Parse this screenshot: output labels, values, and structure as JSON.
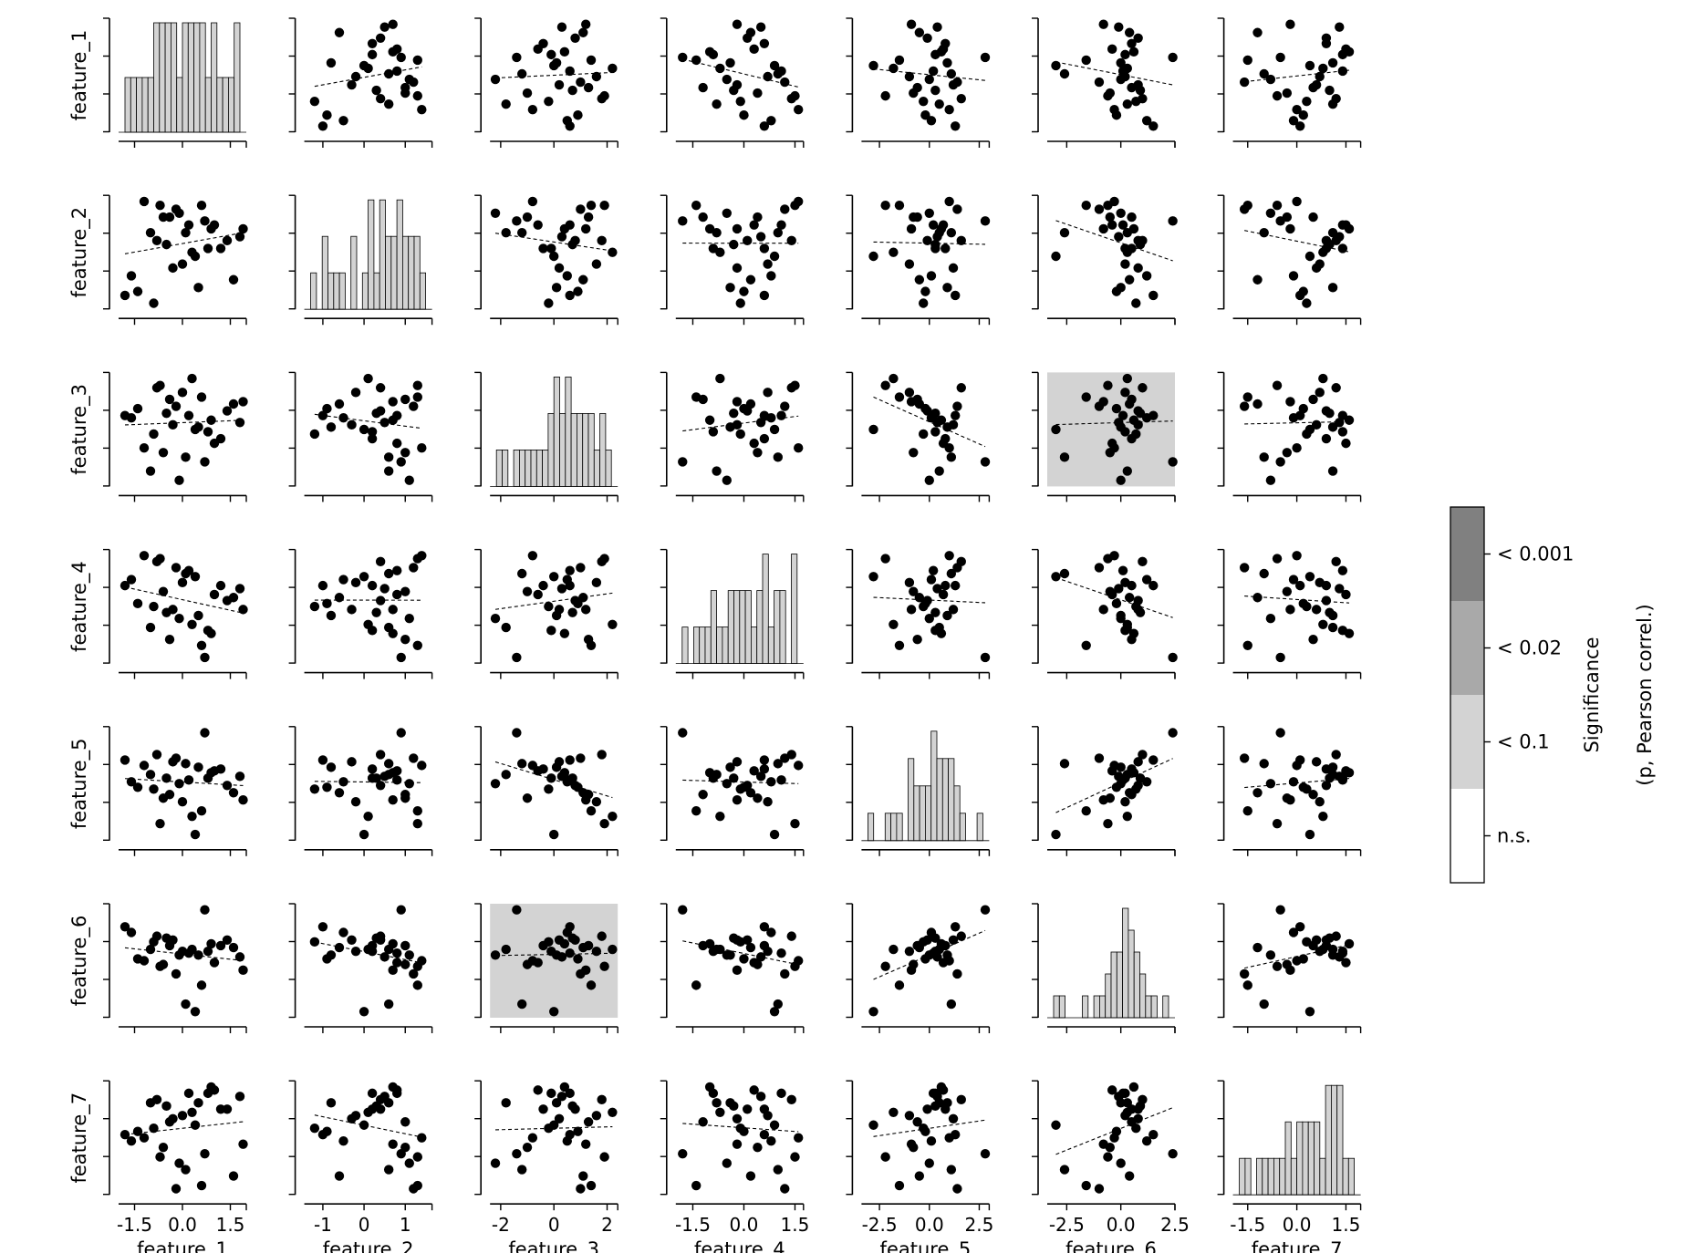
{
  "chart_data": {
    "type": "pairplot",
    "features": [
      "feature_1",
      "feature_2",
      "feature_3",
      "feature_4",
      "feature_5",
      "feature_6",
      "feature_7"
    ],
    "x_ticks": [
      [
        "-1.5",
        "0.0",
        "1.5"
      ],
      [
        "-1",
        "0",
        "1"
      ],
      [
        "-2",
        "0",
        "2"
      ],
      [
        "-1.5",
        "0.0",
        "1.5"
      ],
      [
        "-2.5",
        "0.0",
        "2.5"
      ],
      [
        "-2.5",
        "0.0",
        "2.5"
      ],
      [
        "-1.5",
        "0.0",
        "1.5"
      ]
    ],
    "x_tick_values": [
      [
        -1.5,
        0,
        1.5
      ],
      [
        -1,
        0,
        1
      ],
      [
        -2,
        0,
        2
      ],
      [
        -1.5,
        0,
        1.5
      ],
      [
        -2.5,
        0,
        2.5
      ],
      [
        -2.5,
        0,
        2.5
      ],
      [
        -1.5,
        0,
        1.5
      ]
    ],
    "x_ranges": [
      [
        -2.0,
        2.0
      ],
      [
        -1.45,
        1.65
      ],
      [
        -2.4,
        2.4
      ],
      [
        -2.0,
        1.75
      ],
      [
        -3.4,
        3.0
      ],
      [
        -3.4,
        2.5
      ],
      [
        -1.95,
        1.95
      ]
    ],
    "values": {
      "feature_1": [
        -1.0,
        -0.6,
        -0.3,
        0.2,
        0.6,
        1.2,
        -1.4,
        -0.8,
        -0.1,
        0.4,
        0.9,
        1.6,
        -1.2,
        -0.5,
        0.0,
        0.7,
        1.8,
        -0.9,
        -0.2,
        0.3,
        1.0,
        -1.6,
        -0.4,
        0.1,
        0.5,
        1.4,
        -0.7,
        0.8,
        -1.8,
        1.9
      ],
      "feature_2": [
        0.6,
        1.0,
        -0.3,
        0.8,
        1.3,
        0.2,
        -0.9,
        0.4,
        1.1,
        0.0,
        0.7,
        -0.6,
        1.4,
        0.3,
        -0.2,
        0.9,
        0.5,
        -1.2,
        1.2,
        0.1,
        0.8,
        -0.5,
        1.0,
        0.6,
        -0.8,
        0.4,
        1.3,
        0.2,
        -1.0,
        0.7
      ],
      "feature_3": [
        -1.8,
        -1.0,
        0.2,
        0.6,
        1.4,
        -0.4,
        0.9,
        1.8,
        -2.2,
        0.0,
        0.4,
        1.1,
        -0.8,
        0.7,
        1.6,
        -1.4,
        0.3,
        -0.2,
        1.0,
        2.2,
        -0.6,
        0.5,
        1.3,
        -1.2,
        0.1,
        0.8,
        1.9,
        -0.1,
        0.6,
        1.2
      ],
      "feature_4": [
        -0.8,
        0.4,
        -0.2,
        1.1,
        -1.4,
        0.6,
        0.0,
        1.4,
        -0.5,
        0.9,
        -1.0,
        0.2,
        1.6,
        -0.3,
        0.7,
        -1.8,
        0.5,
        -0.1,
        1.2,
        -0.7,
        0.3,
        0.8,
        -1.2,
        1.0,
        -0.4,
        0.1,
        1.5,
        -0.9,
        0.6,
        -0.2
      ],
      "feature_5": [
        0.5,
        -0.8,
        1.2,
        0.2,
        -1.5,
        0.8,
        -0.2,
        1.6,
        0.0,
        -2.8,
        0.6,
        -0.5,
        1.0,
        0.3,
        -1.0,
        2.8,
        0.4,
        -0.3,
        1.4,
        -1.8,
        0.7,
        0.1,
        -0.6,
        1.1,
        0.9,
        -0.1,
        -2.2,
        0.3,
        1.3,
        -0.9
      ],
      "feature_6": [
        0.3,
        -0.5,
        0.8,
        0.1,
        -1.6,
        0.5,
        -0.2,
        1.0,
        0.0,
        -3.0,
        0.6,
        0.4,
        -0.3,
        0.9,
        0.2,
        2.4,
        -0.1,
        0.7,
        -1.0,
        0.3,
        -0.4,
        1.2,
        0.5,
        -2.6,
        0.0,
        0.8,
        -0.6,
        0.2,
        1.5,
        -0.8
      ],
      "feature_7": [
        1.1,
        -0.3,
        0.6,
        1.4,
        -1.5,
        0.9,
        0.2,
        1.2,
        -0.8,
        0.4,
        1.6,
        -1.2,
        0.0,
        1.0,
        0.7,
        -0.5,
        1.3,
        0.3,
        -1.6,
        0.8,
        1.5,
        -0.1,
        0.5,
        -1.0,
        1.1,
        0.9,
        -0.6,
        1.4,
        0.1,
        -0.2
      ]
    },
    "significant_pairs": [
      {
        "row": "feature_3",
        "col": "feature_6",
        "level": "< 0.1"
      },
      {
        "row": "feature_6",
        "col": "feature_3",
        "level": "< 0.1"
      }
    ],
    "colorbar": {
      "title": "Significance",
      "subtitle": "(p, Pearson correl.)",
      "levels": [
        {
          "label": "< 0.001",
          "color": "#808080"
        },
        {
          "label": "< 0.02",
          "color": "#a9a9a9"
        },
        {
          "label": "< 0.1",
          "color": "#d3d3d3"
        },
        {
          "label": "n.s.",
          "color": "#ffffff"
        }
      ]
    },
    "colors": {
      "point": "#000000",
      "hist_fill": "#d3d3d3",
      "hist_edge": "#000000",
      "trend": "#000000"
    }
  }
}
